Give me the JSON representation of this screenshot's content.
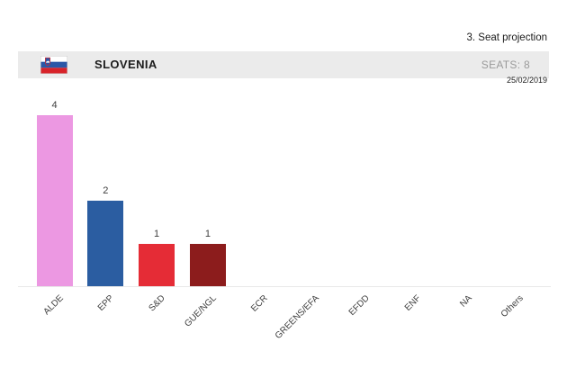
{
  "note": {
    "text": "3. Seat projection"
  },
  "header": {
    "country": "SLOVENIA",
    "seats_label": "SEATS:",
    "seats_value": "8",
    "flag_icon": "slovenia-flag"
  },
  "date": "25/02/2019",
  "colors": {
    "header_bg": "#ebebeb",
    "seats_text": "#9a9a9a",
    "axis_line": "#e8e8e8",
    "dark_text": "#1c1c1c",
    "tick_text": "#3d3d3d",
    "flag_white": "#ffffff",
    "flag_blue": "#2b57a7",
    "flag_red": "#d8232a"
  },
  "chart_data": {
    "type": "bar",
    "title": "3. Seat projection",
    "categories": [
      "ALDE",
      "EPP",
      "S&D",
      "GUE/NGL",
      "ECR",
      "GREENS/EFA",
      "EFDD",
      "ENF",
      "NA",
      "Others"
    ],
    "values": [
      4,
      2,
      1,
      1,
      0,
      0,
      0,
      0,
      0,
      0
    ],
    "bar_colors": [
      "#ec98e2",
      "#2b5da1",
      "#e52c36",
      "#8c1c1c",
      null,
      null,
      null,
      null,
      null,
      null
    ],
    "value_labels": [
      "4",
      "2",
      "1",
      "1",
      null,
      null,
      null,
      null,
      null,
      null
    ],
    "xlabel": "",
    "ylabel": "",
    "ylim": [
      0,
      4
    ],
    "grid": false,
    "legend": false,
    "total_seats": 8
  }
}
